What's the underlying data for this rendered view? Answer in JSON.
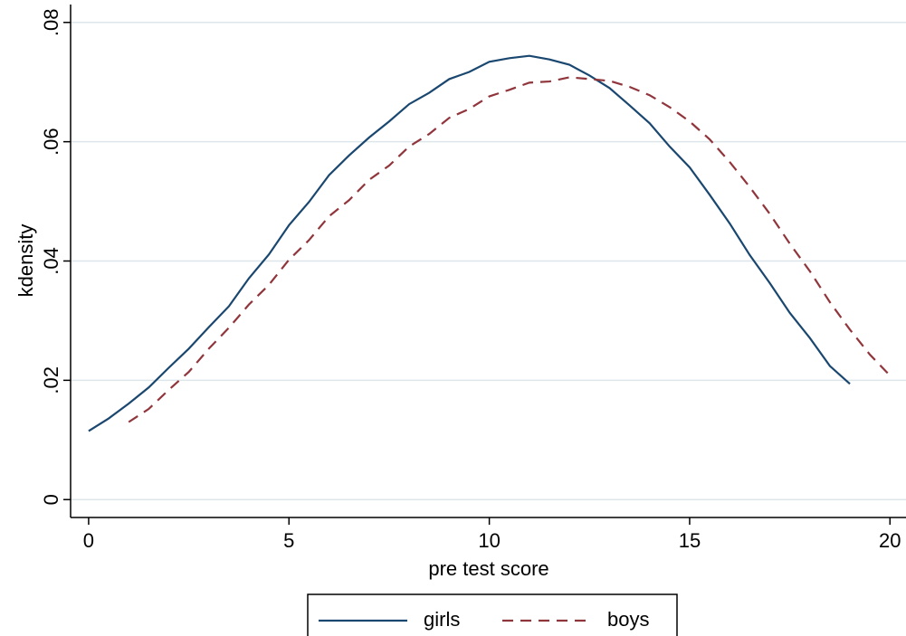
{
  "chart_data": {
    "type": "line",
    "x_label": "pre test score",
    "y_label": "kdensity",
    "x": [
      0,
      0.5,
      1,
      1.5,
      2,
      2.5,
      3,
      3.5,
      4,
      4.5,
      5,
      5.5,
      6,
      6.5,
      7,
      7.5,
      8,
      8.5,
      9,
      9.5,
      10,
      10.5,
      11,
      11.5,
      12,
      12.5,
      13,
      13.5,
      14,
      14.5,
      15,
      15.5,
      16,
      16.5,
      17,
      17.5,
      18,
      18.5,
      19,
      19.5,
      20
    ],
    "series": [
      {
        "name": "girls",
        "color": "#1a476f",
        "dashed": false,
        "values": [
          0.0115,
          0.0136,
          0.0161,
          0.0188,
          0.0221,
          0.0253,
          0.0289,
          0.0324,
          0.0371,
          0.0411,
          0.046,
          0.0499,
          0.0544,
          0.0577,
          0.0607,
          0.0634,
          0.0663,
          0.0682,
          0.0705,
          0.0717,
          0.0734,
          0.074,
          0.0744,
          0.0738,
          0.0729,
          0.0711,
          0.069,
          0.0661,
          0.0631,
          0.0592,
          0.0557,
          0.0511,
          0.0463,
          0.041,
          0.0363,
          0.0313,
          0.0271,
          0.0224,
          0.0194,
          null,
          null
        ]
      },
      {
        "name": "boys",
        "color": "#90353b",
        "dashed": true,
        "values": [
          null,
          null,
          0.013,
          0.0152,
          0.0184,
          0.0214,
          0.0253,
          0.0288,
          0.0327,
          0.036,
          0.0402,
          0.0435,
          0.0475,
          0.0502,
          0.0536,
          0.056,
          0.0592,
          0.0613,
          0.064,
          0.0655,
          0.0676,
          0.0687,
          0.0699,
          0.0701,
          0.0708,
          0.0705,
          0.0702,
          0.0692,
          0.0678,
          0.0658,
          0.0634,
          0.0604,
          0.0566,
          0.0524,
          0.0479,
          0.0429,
          0.0383,
          0.0331,
          0.0285,
          0.0243,
          0.0208
        ]
      }
    ],
    "xlim": [
      -0.45,
      20.4
    ],
    "ylim": [
      -0.003,
      0.083
    ],
    "xticks": [
      0,
      5,
      10,
      15,
      20
    ],
    "yticks": [
      0,
      {
        "value": 0.02,
        "label": ".02"
      },
      {
        "value": 0.04,
        "label": ".04"
      },
      {
        "value": 0.06,
        "label": ".06"
      },
      {
        "value": 0.08,
        "label": ".08"
      }
    ],
    "grid": true,
    "legend": "bottom"
  }
}
